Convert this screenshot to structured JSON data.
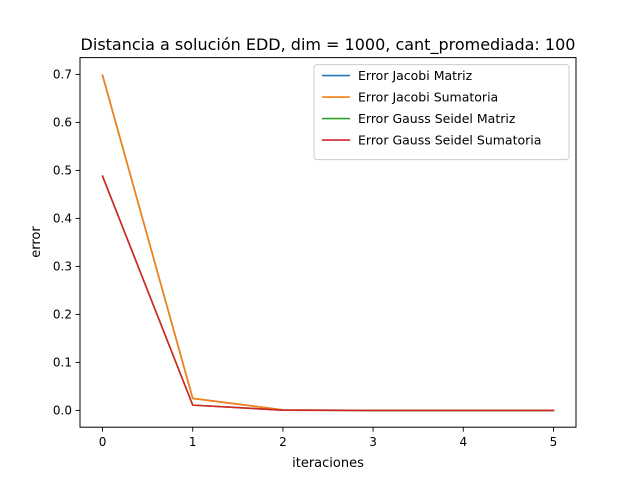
{
  "chart_data": {
    "type": "line",
    "title": "Distancia a solución EDD, dim = 1000, cant_promediada: 100",
    "xlabel": "iteraciones",
    "ylabel": "error",
    "xlim": [
      -0.25,
      5.25
    ],
    "ylim": [
      -0.035,
      0.735
    ],
    "x": [
      0,
      1,
      2,
      3,
      4,
      5
    ],
    "xticks": [
      "0",
      "1",
      "2",
      "3",
      "4",
      "5"
    ],
    "yticks": [
      "0.0",
      "0.1",
      "0.2",
      "0.3",
      "0.4",
      "0.5",
      "0.6",
      "0.7"
    ],
    "ytick_values": [
      0.0,
      0.1,
      0.2,
      0.3,
      0.4,
      0.5,
      0.6,
      0.7
    ],
    "grid": false,
    "legend_position": "top-right",
    "series": [
      {
        "name": "Error Jacobi Matriz",
        "color": "#1f77b4",
        "values": [
          0.698,
          0.025,
          0.001,
          0.0,
          0.0,
          0.0
        ]
      },
      {
        "name": "Error Jacobi Sumatoria",
        "color": "#ff7f0e",
        "values": [
          0.698,
          0.025,
          0.001,
          0.0,
          0.0,
          0.0
        ]
      },
      {
        "name": "Error Gauss Seidel Matriz",
        "color": "#2ca02c",
        "values": [
          0.488,
          0.011,
          0.0005,
          0.0,
          0.0,
          0.0
        ]
      },
      {
        "name": "Error Gauss Seidel Sumatoria",
        "color": "#d62728",
        "values": [
          0.488,
          0.011,
          0.0005,
          0.0,
          0.0,
          0.0
        ]
      }
    ]
  }
}
